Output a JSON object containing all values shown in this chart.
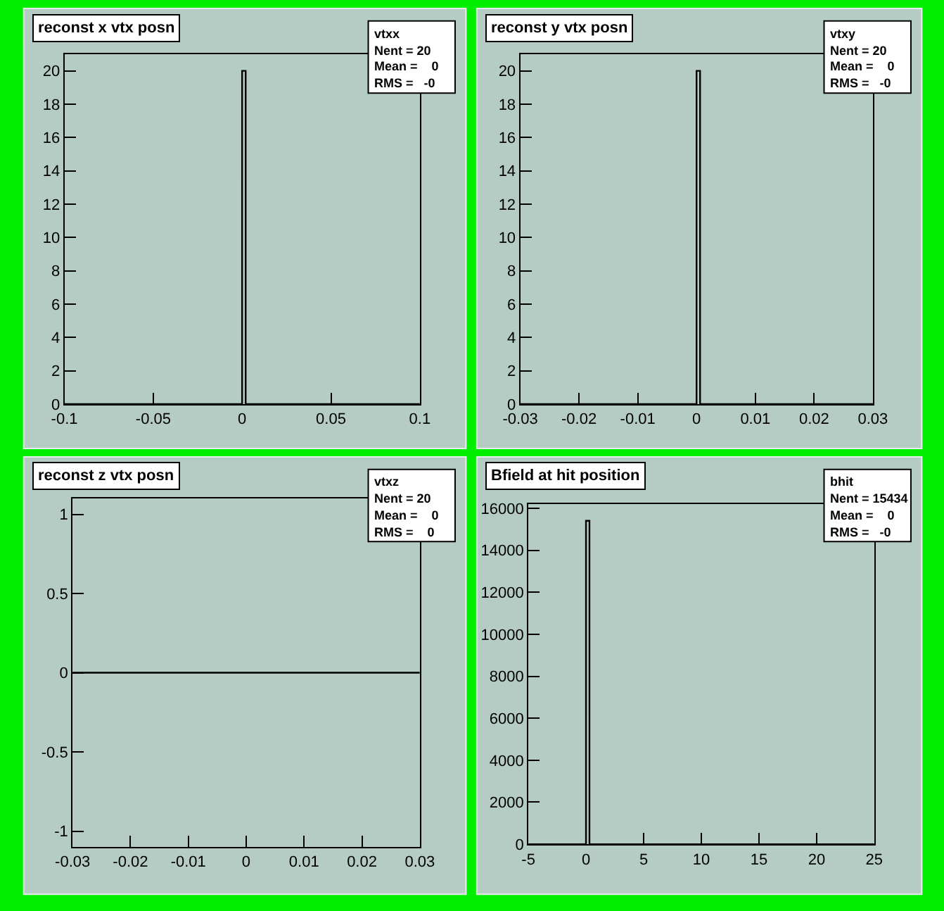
{
  "chart_data": [
    {
      "type": "histogram",
      "title": "reconst x vtx posn",
      "annotations": [
        "vtxx",
        "Nent = 20",
        "Mean =    0",
        "RMS =   -0"
      ],
      "bins": [
        -0.1,
        0,
        0.002,
        0.1
      ],
      "values": [
        0,
        20,
        0
      ],
      "color": "#000000",
      "xlim": [
        -0.1,
        0.1
      ],
      "xticks": [
        -0.1,
        -0.05,
        0,
        0.05,
        0.1
      ],
      "ylim": [
        0,
        21
      ],
      "yticks": [
        0,
        2,
        4,
        6,
        8,
        10,
        12,
        14,
        16,
        18,
        20
      ]
    },
    {
      "type": "histogram",
      "title": "reconst y vtx posn",
      "annotations": [
        "vtxy",
        "Nent = 20",
        "Mean =    0",
        "RMS =   -0"
      ],
      "bins": [
        -0.03,
        0,
        0.0006,
        0.03
      ],
      "values": [
        0,
        20,
        0
      ],
      "color": "#000000",
      "xlim": [
        -0.03,
        0.03
      ],
      "xticks": [
        -0.03,
        -0.02,
        -0.01,
        0,
        0.01,
        0.02,
        0.03
      ],
      "ylim": [
        0,
        21
      ],
      "yticks": [
        0,
        2,
        4,
        6,
        8,
        10,
        12,
        14,
        16,
        18,
        20
      ]
    },
    {
      "type": "histogram",
      "title": "reconst z vtx posn",
      "annotations": [
        "vtxz",
        "Nent = 20",
        "Mean =    0",
        "RMS =    0"
      ],
      "bins": [
        -0.03,
        -0.02,
        -0.01,
        0,
        0.01,
        0.02,
        0.03
      ],
      "values": [
        0,
        0,
        0,
        0,
        0,
        0
      ],
      "color": "#000000",
      "xlim": [
        -0.03,
        0.03
      ],
      "xticks": [
        -0.03,
        -0.02,
        -0.01,
        0,
        0.01,
        0.02,
        0.03
      ],
      "ylim": [
        -1.1,
        1.1
      ],
      "yticks": [
        -1,
        -0.5,
        0,
        0.5,
        1
      ]
    },
    {
      "type": "histogram",
      "title": "Bfield at hit position",
      "annotations": [
        "bhit",
        "Nent = 15434",
        "Mean =    0",
        "RMS =   -0"
      ],
      "bins": [
        -5,
        0,
        0.3,
        25
      ],
      "values": [
        0,
        15400,
        0
      ],
      "color": "#000000",
      "xlim": [
        -5,
        25
      ],
      "xticks": [
        -5,
        0,
        5,
        10,
        15,
        20,
        25
      ],
      "ylim": [
        0,
        16200
      ],
      "yticks": [
        0,
        2000,
        4000,
        6000,
        8000,
        10000,
        12000,
        14000,
        16000
      ]
    }
  ]
}
